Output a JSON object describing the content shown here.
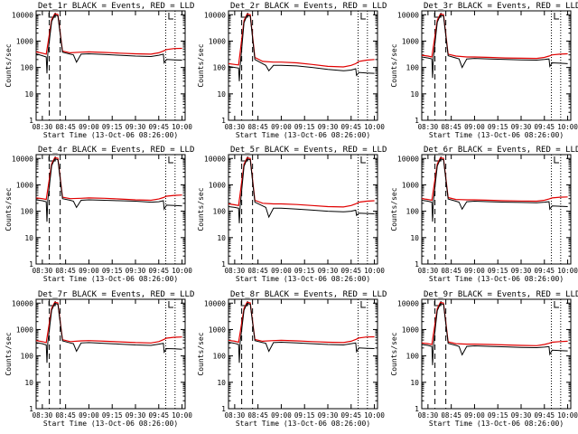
{
  "shared": {
    "ylabel": "Counts/sec",
    "xlabel": "Start Time (13-Oct-06 08:26:00)",
    "x_ticks": [
      "08:30",
      "08:45",
      "09:00",
      "09:15",
      "09:30",
      "09:45",
      "10:00"
    ],
    "y_ticks": [
      "1",
      "10",
      "100",
      "1000",
      "10000"
    ],
    "series_names": [
      "Events",
      "LLD"
    ],
    "colors": {
      "events": "#000000",
      "lld": "#e00000",
      "axes": "#000000",
      "bg": "#ffffff"
    }
  },
  "chart_data": [
    {
      "type": "line",
      "title": "Det_1r BLACK = Events, RED = LLD",
      "xlabel": "Start Time (13-Oct-06 08:26:00)",
      "ylabel": "Counts/sec",
      "xlim": [
        26,
        122
      ],
      "ylim": [
        1,
        14000
      ],
      "y_scale": "log",
      "dashed_lines_x": [
        34.5,
        41.5
      ],
      "dotted_lines_x": [
        109.5,
        115.5
      ],
      "series": [
        {
          "name": "Events",
          "x": [
            26,
            30,
            32.5,
            33,
            33.5,
            36,
            38,
            40,
            43,
            48,
            50,
            52,
            55,
            60,
            70,
            80,
            90,
            100,
            105,
            108,
            108.5,
            110,
            115,
            120
          ],
          "values": [
            330,
            280,
            250,
            60,
            320,
            5500,
            9800,
            9000,
            380,
            320,
            300,
            160,
            320,
            330,
            310,
            290,
            270,
            260,
            290,
            320,
            150,
            200,
            195,
            190
          ]
        },
        {
          "name": "LLD",
          "x": [
            26,
            30,
            32.5,
            36,
            38,
            40,
            43,
            48,
            55,
            60,
            70,
            80,
            90,
            100,
            105,
            108,
            110,
            115,
            120
          ],
          "values": [
            390,
            350,
            320,
            6500,
            10800,
            10200,
            420,
            360,
            380,
            390,
            370,
            350,
            330,
            320,
            360,
            420,
            480,
            520,
            530
          ]
        }
      ]
    },
    {
      "type": "line",
      "title": "Det_2r BLACK = Events, RED = LLD",
      "xlabel": "Start Time (13-Oct-06 08:26:00)",
      "ylabel": "Counts/sec",
      "xlim": [
        26,
        122
      ],
      "ylim": [
        1,
        14000
      ],
      "y_scale": "log",
      "dashed_lines_x": [
        34.5,
        41.5
      ],
      "dotted_lines_x": [
        109.5,
        115.5
      ],
      "series": [
        {
          "name": "Events",
          "x": [
            26,
            30,
            32.5,
            33,
            33.5,
            36,
            38,
            40,
            43,
            48,
            50,
            52,
            55,
            60,
            70,
            80,
            90,
            100,
            105,
            108,
            108.5,
            110,
            115,
            120
          ],
          "values": [
            110,
            100,
            95,
            30,
            110,
            5000,
            9500,
            8800,
            200,
            140,
            120,
            75,
            120,
            120,
            115,
            100,
            85,
            75,
            80,
            90,
            50,
            65,
            62,
            60
          ]
        },
        {
          "name": "LLD",
          "x": [
            26,
            30,
            32.5,
            36,
            38,
            40,
            43,
            48,
            55,
            60,
            70,
            80,
            90,
            100,
            105,
            108,
            110,
            115,
            120
          ],
          "values": [
            140,
            130,
            125,
            6000,
            10500,
            10000,
            240,
            170,
            160,
            160,
            150,
            130,
            110,
            105,
            120,
            140,
            170,
            190,
            200
          ]
        }
      ]
    },
    {
      "type": "line",
      "title": "Det_3r BLACK = Events, RED = LLD",
      "xlabel": "Start Time (13-Oct-06 08:26:00)",
      "ylabel": "Counts/sec",
      "xlim": [
        26,
        122
      ],
      "ylim": [
        1,
        14000
      ],
      "y_scale": "log",
      "dashed_lines_x": [
        34.5,
        41.5
      ],
      "dotted_lines_x": [
        109.5,
        115.5
      ],
      "series": [
        {
          "name": "Events",
          "x": [
            26,
            30,
            32.5,
            33,
            33.5,
            36,
            38,
            40,
            43,
            48,
            50,
            52,
            55,
            60,
            70,
            80,
            90,
            100,
            105,
            108,
            108.5,
            110,
            115,
            120
          ],
          "values": [
            250,
            230,
            210,
            40,
            240,
            5200,
            9600,
            9000,
            280,
            230,
            210,
            100,
            210,
            220,
            210,
            200,
            195,
            190,
            200,
            210,
            110,
            150,
            145,
            140
          ]
        },
        {
          "name": "LLD",
          "x": [
            26,
            30,
            32.5,
            36,
            38,
            40,
            43,
            48,
            55,
            60,
            70,
            80,
            90,
            100,
            105,
            108,
            110,
            115,
            120
          ],
          "values": [
            290,
            270,
            250,
            6200,
            10600,
            10100,
            320,
            270,
            250,
            250,
            240,
            230,
            225,
            220,
            240,
            270,
            300,
            320,
            330
          ]
        }
      ]
    },
    {
      "type": "line",
      "title": "Det_4r BLACK = Events, RED = LLD",
      "xlabel": "Start Time (13-Oct-06 08:26:00)",
      "ylabel": "Counts/sec",
      "xlim": [
        26,
        122
      ],
      "ylim": [
        1,
        14000
      ],
      "y_scale": "log",
      "dashed_lines_x": [
        34.5,
        41.5
      ],
      "dotted_lines_x": [
        109.5,
        115.5
      ],
      "series": [
        {
          "name": "Events",
          "x": [
            26,
            30,
            32.5,
            33,
            33.5,
            36,
            38,
            40,
            43,
            48,
            50,
            52,
            55,
            60,
            70,
            80,
            90,
            100,
            105,
            108,
            108.5,
            110,
            115,
            120
          ],
          "values": [
            270,
            250,
            230,
            40,
            260,
            5300,
            9700,
            9000,
            300,
            260,
            240,
            140,
            260,
            270,
            260,
            250,
            240,
            220,
            230,
            250,
            120,
            170,
            165,
            160
          ]
        },
        {
          "name": "LLD",
          "x": [
            26,
            30,
            32.5,
            36,
            38,
            40,
            43,
            48,
            55,
            60,
            70,
            80,
            90,
            100,
            105,
            108,
            110,
            115,
            120
          ],
          "values": [
            320,
            300,
            280,
            6300,
            10700,
            10200,
            340,
            300,
            310,
            320,
            310,
            290,
            270,
            260,
            290,
            330,
            370,
            400,
            410
          ]
        }
      ]
    },
    {
      "type": "line",
      "title": "Det_5r BLACK = Events, RED = LLD",
      "xlabel": "Start Time (13-Oct-06 08:26:00)",
      "ylabel": "Counts/sec",
      "xlim": [
        26,
        122
      ],
      "ylim": [
        1,
        14000
      ],
      "y_scale": "log",
      "dashed_lines_x": [
        34.5,
        41.5
      ],
      "dotted_lines_x": [
        109.5,
        115.5
      ],
      "series": [
        {
          "name": "Events",
          "x": [
            26,
            30,
            32.5,
            33,
            33.5,
            36,
            38,
            40,
            43,
            48,
            50,
            52,
            55,
            60,
            70,
            80,
            90,
            100,
            105,
            108,
            108.5,
            110,
            115,
            120
          ],
          "values": [
            150,
            140,
            130,
            35,
            150,
            5100,
            9500,
            8900,
            220,
            160,
            140,
            60,
            130,
            130,
            120,
            110,
            100,
            95,
            100,
            110,
            70,
            85,
            82,
            80
          ]
        },
        {
          "name": "LLD",
          "x": [
            26,
            30,
            32.5,
            36,
            38,
            40,
            43,
            48,
            55,
            60,
            70,
            80,
            90,
            100,
            105,
            108,
            110,
            115,
            120
          ],
          "values": [
            190,
            175,
            165,
            6100,
            10500,
            10000,
            260,
            200,
            190,
            190,
            180,
            165,
            150,
            145,
            165,
            190,
            220,
            240,
            250
          ]
        }
      ]
    },
    {
      "type": "line",
      "title": "Det_6r BLACK = Events, RED = LLD",
      "xlabel": "Start Time (13-Oct-06 08:26:00)",
      "ylabel": "Counts/sec",
      "xlim": [
        26,
        122
      ],
      "ylim": [
        1,
        14000
      ],
      "y_scale": "log",
      "dashed_lines_x": [
        34.5,
        41.5
      ],
      "dotted_lines_x": [
        109.5,
        115.5
      ],
      "series": [
        {
          "name": "Events",
          "x": [
            26,
            30,
            32.5,
            33,
            33.5,
            36,
            38,
            40,
            43,
            48,
            50,
            52,
            55,
            60,
            70,
            80,
            90,
            100,
            105,
            108,
            108.5,
            110,
            115,
            120
          ],
          "values": [
            260,
            240,
            220,
            40,
            250,
            5200,
            9600,
            9000,
            290,
            240,
            220,
            120,
            230,
            240,
            230,
            220,
            215,
            210,
            220,
            230,
            120,
            160,
            155,
            150
          ]
        },
        {
          "name": "LLD",
          "x": [
            26,
            30,
            32.5,
            36,
            38,
            40,
            43,
            48,
            55,
            60,
            70,
            80,
            90,
            100,
            105,
            108,
            110,
            115,
            120
          ],
          "values": [
            300,
            280,
            260,
            6200,
            10600,
            10100,
            330,
            280,
            270,
            270,
            260,
            250,
            245,
            240,
            260,
            290,
            320,
            340,
            350
          ]
        }
      ]
    },
    {
      "type": "line",
      "title": "Det_7r BLACK = Events, RED = LLD",
      "xlabel": "Start Time (13-Oct-06 08:26:00)",
      "ylabel": "Counts/sec",
      "xlim": [
        26,
        122
      ],
      "ylim": [
        1,
        14000
      ],
      "y_scale": "log",
      "dashed_lines_x": [
        34.5,
        41.5
      ],
      "dotted_lines_x": [
        109.5,
        115.5
      ],
      "series": [
        {
          "name": "Events",
          "x": [
            26,
            30,
            32.5,
            33,
            33.5,
            36,
            38,
            40,
            43,
            48,
            50,
            52,
            55,
            60,
            70,
            80,
            90,
            100,
            105,
            108,
            108.5,
            110,
            115,
            120
          ],
          "values": [
            320,
            290,
            260,
            55,
            310,
            5400,
            9800,
            9100,
            370,
            310,
            290,
            150,
            310,
            320,
            300,
            280,
            260,
            250,
            280,
            300,
            140,
            190,
            185,
            180
          ]
        },
        {
          "name": "LLD",
          "x": [
            26,
            30,
            32.5,
            36,
            38,
            40,
            43,
            48,
            55,
            60,
            70,
            80,
            90,
            100,
            105,
            108,
            110,
            115,
            120
          ],
          "values": [
            380,
            350,
            320,
            6400,
            10800,
            10200,
            410,
            350,
            370,
            380,
            360,
            340,
            320,
            310,
            350,
            410,
            470,
            510,
            520
          ]
        }
      ]
    },
    {
      "type": "line",
      "title": "Det_8r BLACK = Events, RED = LLD",
      "xlabel": "Start Time (13-Oct-06 08:26:00)",
      "ylabel": "Counts/sec",
      "xlim": [
        26,
        122
      ],
      "ylim": [
        1,
        14000
      ],
      "y_scale": "log",
      "dashed_lines_x": [
        34.5,
        41.5
      ],
      "dotted_lines_x": [
        109.5,
        115.5
      ],
      "series": [
        {
          "name": "Events",
          "x": [
            26,
            30,
            32.5,
            33,
            33.5,
            36,
            38,
            40,
            43,
            48,
            50,
            52,
            55,
            60,
            70,
            80,
            90,
            100,
            105,
            108,
            108.5,
            110,
            115,
            120
          ],
          "values": [
            330,
            300,
            270,
            55,
            320,
            5400,
            9800,
            9100,
            380,
            320,
            300,
            150,
            320,
            330,
            310,
            290,
            270,
            260,
            290,
            310,
            145,
            200,
            195,
            190
          ]
        },
        {
          "name": "LLD",
          "x": [
            26,
            30,
            32.5,
            36,
            38,
            40,
            43,
            48,
            55,
            60,
            70,
            80,
            90,
            100,
            105,
            108,
            110,
            115,
            120
          ],
          "values": [
            390,
            360,
            330,
            6400,
            10800,
            10200,
            420,
            360,
            380,
            390,
            370,
            350,
            330,
            320,
            360,
            420,
            480,
            520,
            530
          ]
        }
      ]
    },
    {
      "type": "line",
      "title": "Det_9r BLACK = Events, RED = LLD",
      "xlabel": "Start Time (13-Oct-06 08:26:00)",
      "ylabel": "Counts/sec",
      "xlim": [
        26,
        122
      ],
      "ylim": [
        1,
        14000
      ],
      "y_scale": "log",
      "dashed_lines_x": [
        34.5,
        41.5
      ],
      "dotted_lines_x": [
        109.5,
        115.5
      ],
      "series": [
        {
          "name": "Events",
          "x": [
            26,
            30,
            32.5,
            33,
            33.5,
            36,
            38,
            40,
            43,
            48,
            50,
            52,
            55,
            60,
            70,
            80,
            90,
            100,
            105,
            108,
            108.5,
            110,
            115,
            120
          ],
          "values": [
            270,
            250,
            230,
            45,
            260,
            5200,
            9600,
            9000,
            300,
            250,
            230,
            110,
            230,
            240,
            230,
            220,
            210,
            205,
            215,
            225,
            115,
            165,
            160,
            155
          ]
        },
        {
          "name": "LLD",
          "x": [
            26,
            30,
            32.5,
            36,
            38,
            40,
            43,
            48,
            55,
            60,
            70,
            80,
            90,
            100,
            105,
            108,
            110,
            115,
            120
          ],
          "values": [
            310,
            290,
            270,
            6200,
            10600,
            10100,
            340,
            290,
            280,
            280,
            270,
            260,
            250,
            245,
            270,
            300,
            330,
            350,
            360
          ]
        }
      ]
    }
  ]
}
